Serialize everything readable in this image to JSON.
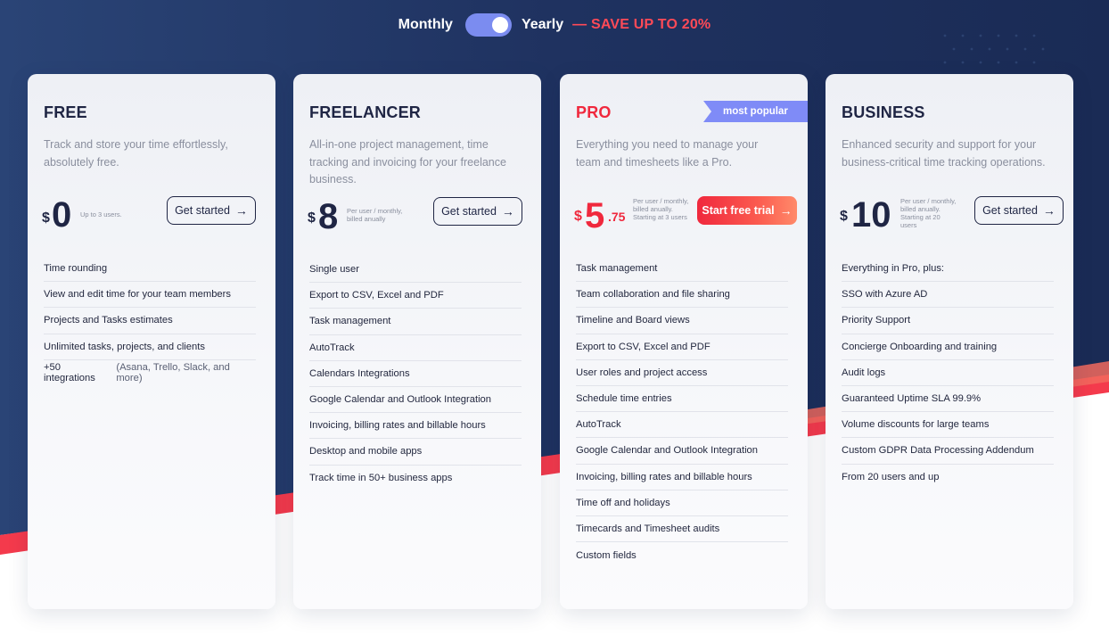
{
  "billing_toggle": {
    "monthly_label": "Monthly",
    "yearly_label": "Yearly",
    "selected": "Yearly",
    "save_text": "— SAVE UP TO 20%"
  },
  "colors": {
    "navy_background": "#1e3262",
    "accent_red": "#f0283d",
    "toggle_blue": "#7b8cf0",
    "ribbon_purple": "#7f8bf7"
  },
  "plans": [
    {
      "name": "FREE",
      "description": "Track and store your time effortlessly, absolutely free.",
      "currency": "$",
      "amount": "0",
      "price_note": "Up to 3 users.",
      "button": "Get started",
      "button_icon": "arrow-right-icon",
      "features": [
        {
          "text": "Time rounding",
          "extra": ""
        },
        {
          "text": "View and edit time for your team members",
          "extra": ""
        },
        {
          "text": "Projects and Tasks estimates",
          "extra": ""
        },
        {
          "text": "Unlimited tasks, projects, and clients",
          "extra": ""
        },
        {
          "text": "+50 integrations",
          "extra": "(Asana, Trello, Slack, and more)"
        }
      ]
    },
    {
      "name": "FREELANCER",
      "description": "All-in-one project management, time tracking and invoicing for your freelance business.",
      "currency": "$",
      "amount": "8",
      "price_note": "Per user / monthly, billed anually",
      "button": "Get started",
      "button_icon": "arrow-right-icon",
      "features": [
        "Single user",
        "Export to CSV, Excel and PDF",
        "Task management",
        "AutoTrack",
        "Calendars Integrations",
        "Google Calendar and Outlook Integration",
        "Invoicing, billing rates and billable hours",
        "Desktop and mobile apps",
        "Track time in 50+ business apps"
      ]
    },
    {
      "name": "PRO",
      "badge": "most popular",
      "description": "Everything you need to manage your team and timesheets like a Pro.",
      "currency": "$",
      "amount": "5",
      "cents": ".75",
      "price_note": "Per user / monthly, billed anually. Starting at 3 users",
      "button": "Start free trial",
      "button_icon": "arrow-right-icon",
      "features": [
        "Task management",
        "Team collaboration and file sharing",
        "Timeline and Board views",
        "Export to CSV, Excel and PDF",
        "User roles and project access",
        "Schedule time entries",
        "AutoTrack",
        "Google Calendar and Outlook Integration",
        "Invoicing, billing rates and billable hours",
        "Time off and holidays",
        "Timecards and Timesheet audits",
        "Custom fields"
      ]
    },
    {
      "name": "BUSINESS",
      "description": "Enhanced security and support for your business-critical time tracking operations.",
      "currency": "$",
      "amount": "10",
      "price_note": "Per user / monthly, billed anually. Starting at 20 users",
      "button": "Get started",
      "button_icon": "arrow-right-icon",
      "features": [
        "Everything in Pro, plus:",
        "SSO with Azure AD",
        "Priority Support",
        "Concierge Onboarding and training",
        "Audit logs",
        "Guaranteed Uptime SLA 99.9%",
        "Volume discounts for large teams",
        "Custom GDPR Data Processing Addendum",
        "From 20 users and up"
      ]
    }
  ]
}
